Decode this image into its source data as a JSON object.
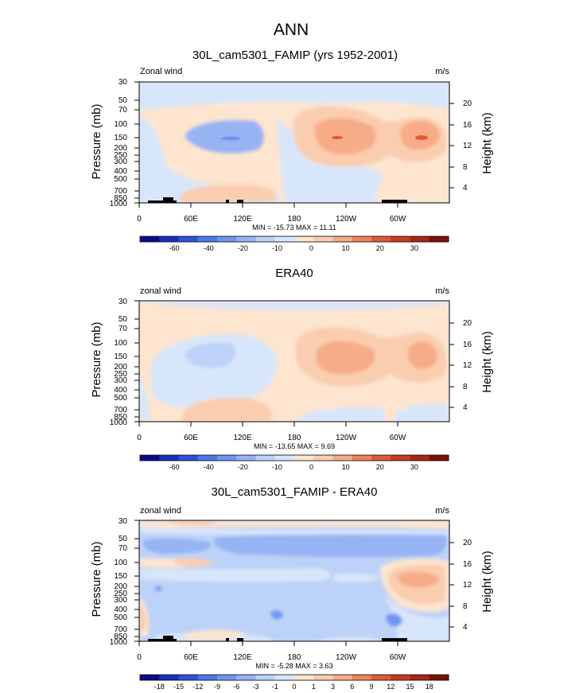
{
  "figure": {
    "title": "ANN"
  },
  "palette": {
    "colors": [
      "#0b0b8a",
      "#1a2fbf",
      "#2e52dd",
      "#4a78ec",
      "#6f95f0",
      "#96b3f3",
      "#bdd2f8",
      "#d8e6fb",
      "#fde5cf",
      "#fbcdb0",
      "#f7ab86",
      "#ef8258",
      "#e25a33",
      "#c73c1f",
      "#a92617",
      "#7a1209"
    ],
    "land": "#000000"
  },
  "chart_data": [
    {
      "type": "heatmap",
      "title": "30L_cam5301_FAMIP (yrs 1952-2001)",
      "left_label": "Zonal wind",
      "units": "m/s",
      "xlabel": "",
      "ylabel": "Pressure (mb)",
      "y2label": "Height (km)",
      "x_ticks": [
        "0",
        "60E",
        "120E",
        "180",
        "120W",
        "60W"
      ],
      "y_ticks": [
        "30",
        "50",
        "70",
        "100",
        "150",
        "200",
        "250",
        "300",
        "400",
        "500",
        "700",
        "850",
        "1000"
      ],
      "y2_ticks": [
        "20",
        "16",
        "12",
        "8",
        "4"
      ],
      "stats": "MIN = -15.73   MAX =  11.11",
      "min": -15.73,
      "max": 11.11,
      "levels": [
        -60,
        -40,
        -20,
        -10,
        0,
        10,
        20,
        30
      ],
      "colorbar_labels": [
        "-60",
        "-40",
        "-20",
        "-10",
        "0",
        "10",
        "20",
        "30"
      ]
    },
    {
      "type": "heatmap",
      "title": "ERA40",
      "left_label": "zonal wind",
      "units": "m/s",
      "xlabel": "",
      "ylabel": "Pressure (mb)",
      "y2label": "Height (km)",
      "x_ticks": [
        "0",
        "60E",
        "120E",
        "180",
        "120W",
        "60W"
      ],
      "y_ticks": [
        "30",
        "50",
        "70",
        "100",
        "150",
        "200",
        "250",
        "300",
        "400",
        "500",
        "700",
        "850",
        "1000"
      ],
      "y2_ticks": [
        "20",
        "16",
        "12",
        "8",
        "4"
      ],
      "stats": "MIN = -13.65   MAX =  9.69",
      "min": -13.65,
      "max": 9.69,
      "levels": [
        -60,
        -40,
        -20,
        -10,
        0,
        10,
        20,
        30
      ],
      "colorbar_labels": [
        "-60",
        "-40",
        "-20",
        "-10",
        "0",
        "10",
        "20",
        "30"
      ]
    },
    {
      "type": "heatmap",
      "title": "30L_cam5301_FAMIP - ERA40",
      "left_label": "zonal wind",
      "units": "m/s",
      "xlabel": "",
      "ylabel": "Pressure (mb)",
      "y2label": "Height (km)",
      "x_ticks": [
        "0",
        "60E",
        "120E",
        "180",
        "120W",
        "60W"
      ],
      "y_ticks": [
        "30",
        "50",
        "70",
        "100",
        "150",
        "200",
        "250",
        "300",
        "400",
        "500",
        "700",
        "850",
        "1000"
      ],
      "y2_ticks": [
        "20",
        "16",
        "12",
        "8",
        "4"
      ],
      "stats": "MIN = -5.28   MAX =  3.63",
      "min": -5.28,
      "max": 3.63,
      "levels": [
        -18,
        -15,
        -12,
        -9,
        -6,
        -3,
        -1,
        0,
        1,
        3,
        6,
        9,
        12,
        15,
        18
      ],
      "colorbar_labels": [
        "-18",
        "-15",
        "-12",
        "-9",
        "-6",
        "-3",
        "-1",
        "0",
        "1",
        "3",
        "6",
        "9",
        "12",
        "15",
        "18"
      ]
    }
  ]
}
